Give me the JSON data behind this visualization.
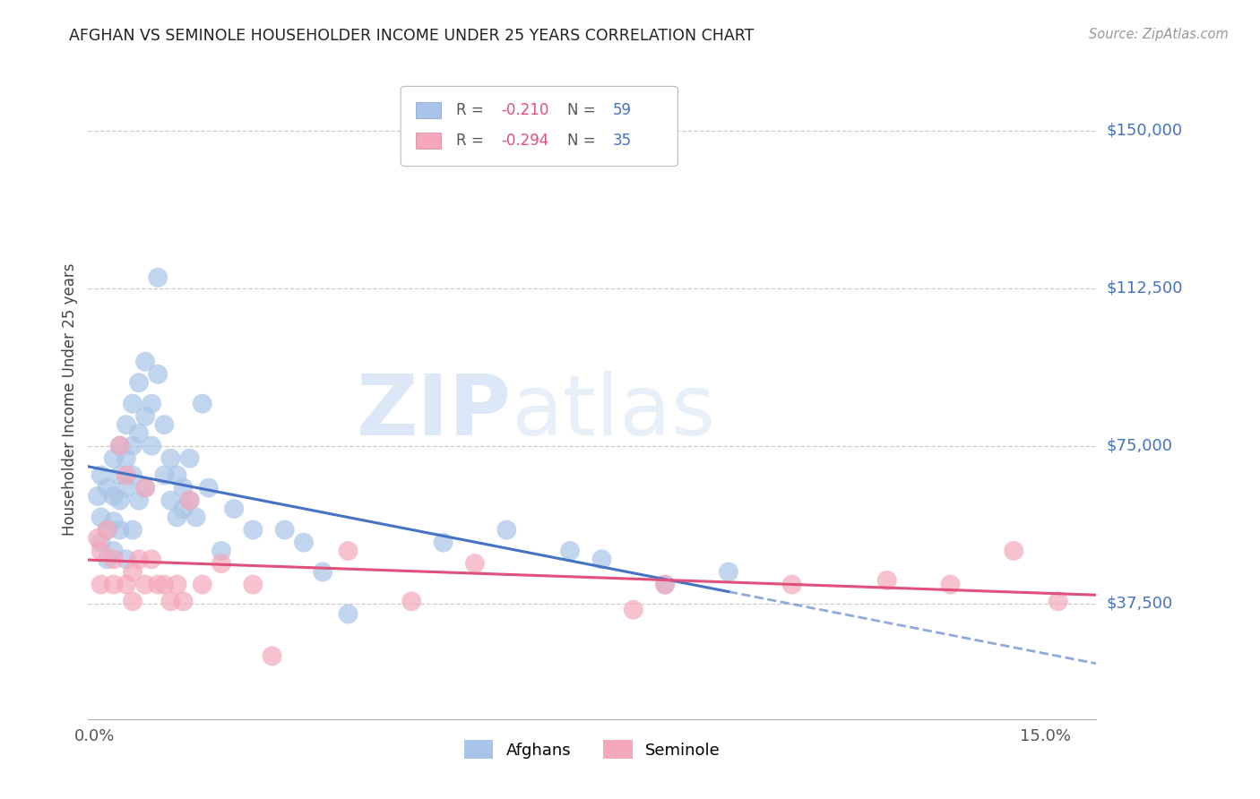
{
  "title": "AFGHAN VS SEMINOLE HOUSEHOLDER INCOME UNDER 25 YEARS CORRELATION CHART",
  "source": "Source: ZipAtlas.com",
  "ylabel": "Householder Income Under 25 years",
  "ytick_labels": [
    "$150,000",
    "$112,500",
    "$75,000",
    "$37,500"
  ],
  "ytick_values": [
    150000,
    112500,
    75000,
    37500
  ],
  "ymin": 10000,
  "ymax": 162000,
  "xmin": -0.001,
  "xmax": 0.158,
  "afghan_R": -0.21,
  "afghan_N": 59,
  "seminole_R": -0.294,
  "seminole_N": 35,
  "afghan_color": "#a8c4e8",
  "seminole_color": "#f5a8bc",
  "afghan_line_color": "#4472c4",
  "seminole_line_color": "#e0507a",
  "label_color": "#4472c4",
  "background_color": "#ffffff",
  "grid_color": "#cccccc",
  "watermark_zip": "ZIP",
  "watermark_atlas": "atlas",
  "afghans_x": [
    0.0005,
    0.001,
    0.001,
    0.001,
    0.002,
    0.002,
    0.002,
    0.003,
    0.003,
    0.003,
    0.003,
    0.004,
    0.004,
    0.004,
    0.004,
    0.005,
    0.005,
    0.005,
    0.005,
    0.006,
    0.006,
    0.006,
    0.006,
    0.007,
    0.007,
    0.007,
    0.008,
    0.008,
    0.008,
    0.009,
    0.009,
    0.01,
    0.01,
    0.011,
    0.011,
    0.012,
    0.012,
    0.013,
    0.013,
    0.014,
    0.014,
    0.015,
    0.015,
    0.016,
    0.017,
    0.018,
    0.02,
    0.022,
    0.025,
    0.03,
    0.033,
    0.036,
    0.04,
    0.055,
    0.065,
    0.075,
    0.08,
    0.09,
    0.1
  ],
  "afghans_y": [
    63000,
    58000,
    52000,
    68000,
    65000,
    55000,
    48000,
    72000,
    63000,
    57000,
    50000,
    75000,
    68000,
    62000,
    55000,
    80000,
    72000,
    65000,
    48000,
    85000,
    75000,
    68000,
    55000,
    90000,
    78000,
    62000,
    95000,
    82000,
    65000,
    85000,
    75000,
    115000,
    92000,
    80000,
    68000,
    72000,
    62000,
    68000,
    58000,
    65000,
    60000,
    72000,
    62000,
    58000,
    85000,
    65000,
    50000,
    60000,
    55000,
    55000,
    52000,
    45000,
    35000,
    52000,
    55000,
    50000,
    48000,
    42000,
    45000
  ],
  "seminoles_x": [
    0.0005,
    0.001,
    0.001,
    0.002,
    0.003,
    0.003,
    0.004,
    0.005,
    0.005,
    0.006,
    0.006,
    0.007,
    0.008,
    0.008,
    0.009,
    0.01,
    0.011,
    0.012,
    0.013,
    0.014,
    0.015,
    0.017,
    0.02,
    0.025,
    0.028,
    0.04,
    0.05,
    0.06,
    0.085,
    0.09,
    0.11,
    0.125,
    0.135,
    0.145,
    0.152
  ],
  "seminoles_y": [
    53000,
    50000,
    42000,
    55000,
    48000,
    42000,
    75000,
    68000,
    42000,
    45000,
    38000,
    48000,
    65000,
    42000,
    48000,
    42000,
    42000,
    38000,
    42000,
    38000,
    62000,
    42000,
    47000,
    42000,
    25000,
    50000,
    38000,
    47000,
    36000,
    42000,
    42000,
    43000,
    42000,
    50000,
    38000
  ]
}
